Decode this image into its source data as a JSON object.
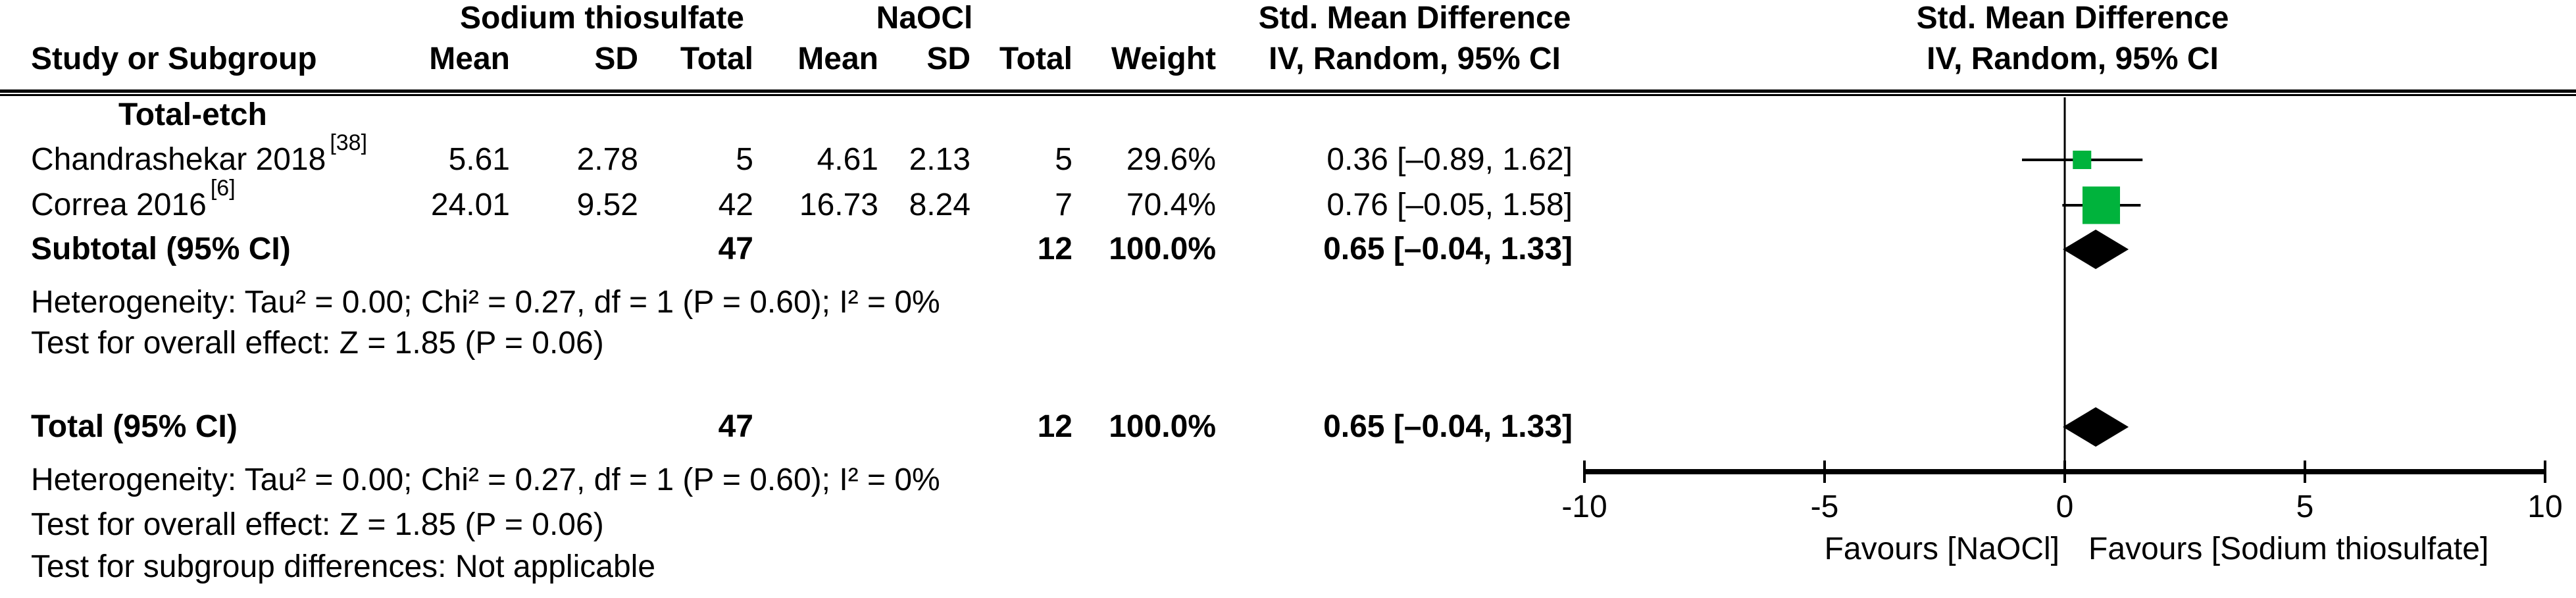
{
  "figure": {
    "group_headers": {
      "treatment": "Sodium thiosulfate",
      "control": "NaOCl",
      "effect_table": "Std. Mean Difference",
      "effect_plot": "Std. Mean Difference"
    },
    "col_headers": {
      "study": "Study or Subgroup",
      "mean": "Mean",
      "sd": "SD",
      "total": "Total",
      "weight": "Weight",
      "method": "IV, Random, 95% CI"
    },
    "subgroup_label": "Total-etch",
    "studies": [
      {
        "name": "Chandrashekar 2018",
        "ref": "[38]",
        "mean_t": "5.61",
        "sd_t": "2.78",
        "n_t": "5",
        "mean_c": "4.61",
        "sd_c": "2.13",
        "n_c": "5",
        "weight": "29.6%",
        "effect": "0.36 [–0.89, 1.62]"
      },
      {
        "name": "Correa 2016",
        "ref": "[6]",
        "mean_t": "24.01",
        "sd_t": "9.52",
        "n_t": "42",
        "mean_c": "16.73",
        "sd_c": "8.24",
        "n_c": "7",
        "weight": "70.4%",
        "effect": "0.76 [–0.05, 1.58]"
      }
    ],
    "subtotal": {
      "label": "Subtotal (95% CI)",
      "n_t": "47",
      "n_c": "12",
      "weight": "100.0%",
      "effect": "0.65 [–0.04, 1.33]"
    },
    "subtotal_notes": [
      "Heterogeneity: Tau² = 0.00; Chi² = 0.27, df = 1 (P = 0.60); I² = 0%",
      "Test for overall effect: Z = 1.85 (P = 0.06)"
    ],
    "total": {
      "label": "Total (95% CI)",
      "n_t": "47",
      "n_c": "12",
      "weight": "100.0%",
      "effect": "0.65 [–0.04, 1.33]"
    },
    "total_notes": [
      "Heterogeneity: Tau² = 0.00; Chi² = 0.27, df = 1 (P = 0.60); I² = 0%",
      "Test for overall effect: Z = 1.85 (P = 0.06)",
      "Test for subgroup differences: Not applicable"
    ]
  },
  "axis": {
    "tick_labels": [
      "-10",
      "-5",
      "0",
      "5",
      "10"
    ],
    "favours_left": "Favours [NaOCl]",
    "favours_right": "Favours [Sodium thiosulfate]"
  },
  "colors": {
    "marker": "#00B33C",
    "diamond": "#000000",
    "line": "#000000"
  },
  "chart_data": {
    "type": "scatter",
    "subtype": "forest-plot",
    "title": "Std. Mean Difference  IV, Random, 95% CI",
    "x_range": [
      -10,
      10
    ],
    "ticks": [
      -10,
      -5,
      0,
      5,
      10
    ],
    "grid": false,
    "studies": [
      {
        "label": "Chandrashekar 2018 [38]",
        "est": 0.36,
        "lo": -0.89,
        "hi": 1.62,
        "weight_pct": 29.6
      },
      {
        "label": "Correa 2016 [6]",
        "est": 0.76,
        "lo": -0.05,
        "hi": 1.58,
        "weight_pct": 70.4
      }
    ],
    "subtotal": {
      "label": "Subtotal (95% CI)",
      "est": 0.65,
      "lo": -0.04,
      "hi": 1.33
    },
    "total": {
      "label": "Total (95% CI)",
      "est": 0.65,
      "lo": -0.04,
      "hi": 1.33
    },
    "favours_left": "Favours [NaOCl]",
    "favours_right": "Favours [Sodium thiosulfate]"
  }
}
